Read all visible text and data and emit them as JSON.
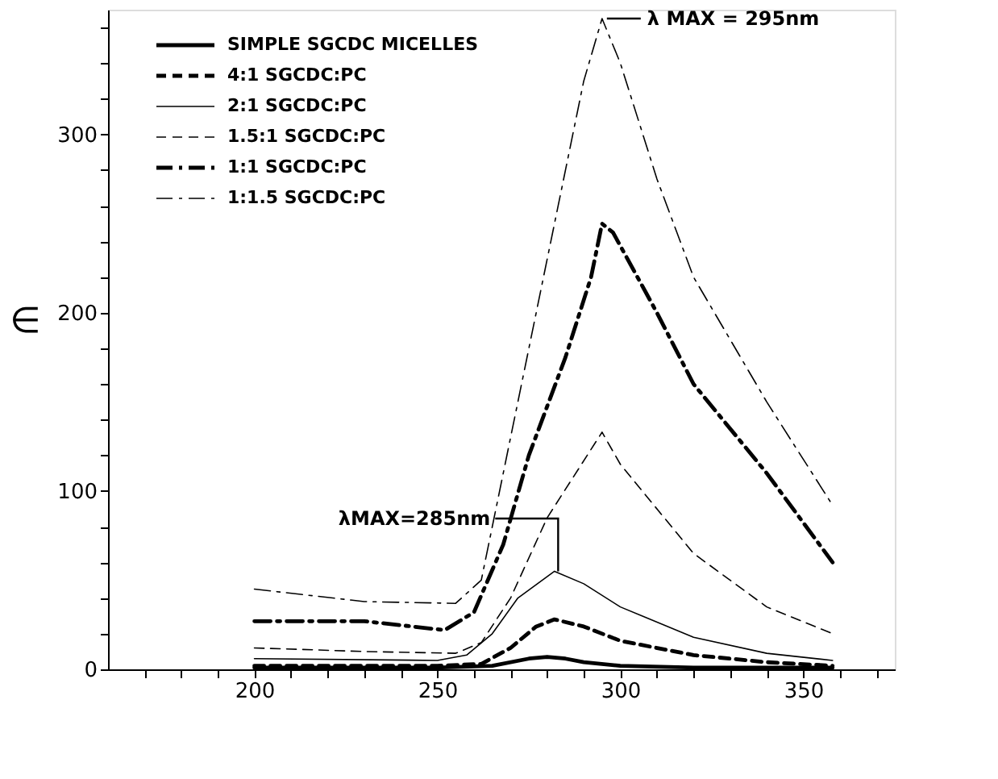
{
  "chart_data": {
    "type": "line",
    "ylabel": "∈",
    "xlim": [
      160,
      375
    ],
    "ylim": [
      0,
      370
    ],
    "xticks": [
      {
        "value": 170,
        "label": null
      },
      {
        "value": 180,
        "label": null
      },
      {
        "value": 190,
        "label": null
      },
      200,
      {
        "value": 210,
        "label": null
      },
      {
        "value": 220,
        "label": null
      },
      {
        "value": 230,
        "label": null
      },
      {
        "value": 240,
        "label": null
      },
      250,
      {
        "value": 260,
        "label": null
      },
      {
        "value": 270,
        "label": null
      },
      {
        "value": 280,
        "label": null
      },
      {
        "value": 290,
        "label": null
      },
      300,
      {
        "value": 310,
        "label": null
      },
      {
        "value": 320,
        "label": null
      },
      {
        "value": 330,
        "label": null
      },
      {
        "value": 340,
        "label": null
      },
      350,
      {
        "value": 360,
        "label": null
      },
      {
        "value": 370,
        "label": null
      }
    ],
    "yticks": [
      0,
      {
        "value": 20,
        "label": null
      },
      {
        "value": 40,
        "label": null
      },
      {
        "value": 60,
        "label": null
      },
      {
        "value": 80,
        "label": null
      },
      100,
      {
        "value": 120,
        "label": null
      },
      {
        "value": 140,
        "label": null
      },
      {
        "value": 160,
        "label": null
      },
      {
        "value": 180,
        "label": null
      },
      200,
      {
        "value": 220,
        "label": null
      },
      {
        "value": 240,
        "label": null
      },
      {
        "value": 260,
        "label": null
      },
      {
        "value": 280,
        "label": null
      },
      300,
      {
        "value": 320,
        "label": null
      },
      {
        "value": 340,
        "label": null
      },
      {
        "value": 360,
        "label": null
      }
    ],
    "grid": false,
    "legend": "top left",
    "marker": "none",
    "series": [
      {
        "name": "SIMPLE SGCDC MICELLES",
        "color": "#000000",
        "line_style": "solid",
        "x": [
          200,
          250,
          265,
          275,
          280,
          285,
          290,
          300,
          320,
          358
        ],
        "values": [
          1,
          1,
          2,
          6,
          7,
          6,
          4,
          2,
          1,
          1
        ]
      },
      {
        "name": "4:1 SGCDC:PC",
        "color": "#000000",
        "line_style": "dashed",
        "x": [
          200,
          250,
          262,
          270,
          277,
          282,
          290,
          300,
          320,
          340,
          358
        ],
        "values": [
          2,
          2,
          3,
          12,
          24,
          28,
          24,
          16,
          8,
          4,
          2
        ]
      },
      {
        "name": "2:1 SGCDC:PC",
        "color": "#000000",
        "line_style": "solid",
        "x": [
          200,
          250,
          258,
          265,
          272,
          282,
          290,
          300,
          320,
          340,
          358
        ],
        "values": [
          6,
          5,
          8,
          20,
          40,
          55,
          48,
          35,
          18,
          9,
          5
        ]
      },
      {
        "name": "1.5:1 SGCDC:PC",
        "color": "#000000",
        "line_style": "dashed",
        "x": [
          200,
          230,
          255,
          262,
          270,
          280,
          295,
          300,
          320,
          340,
          358
        ],
        "values": [
          12,
          10,
          9,
          15,
          40,
          85,
          133,
          115,
          65,
          35,
          20
        ]
      },
      {
        "name": "1:1 SGCDC:PC",
        "color": "#000000",
        "line_style": "dashdot",
        "x": [
          200,
          230,
          252,
          260,
          268,
          275,
          285,
          292,
          295,
          298,
          310,
          320,
          340,
          358
        ],
        "values": [
          27,
          27,
          22,
          32,
          70,
          120,
          175,
          220,
          250,
          245,
          200,
          160,
          110,
          60
        ]
      },
      {
        "name": "1:1.5 SGCDC:PC",
        "color": "#000000",
        "line_style": "dashdot",
        "x": [
          200,
          230,
          255,
          262,
          268,
          275,
          283,
          290,
          295,
          300,
          310,
          320,
          340,
          358
        ],
        "values": [
          45,
          38,
          37,
          50,
          110,
          180,
          260,
          330,
          365,
          340,
          275,
          220,
          150,
          92
        ]
      }
    ],
    "annotations": [
      {
        "text": "λ MAX = 295nm",
        "x": 295,
        "y": 365
      },
      {
        "text": "λMAX=285nm",
        "x": 283,
        "y": 55
      }
    ]
  }
}
